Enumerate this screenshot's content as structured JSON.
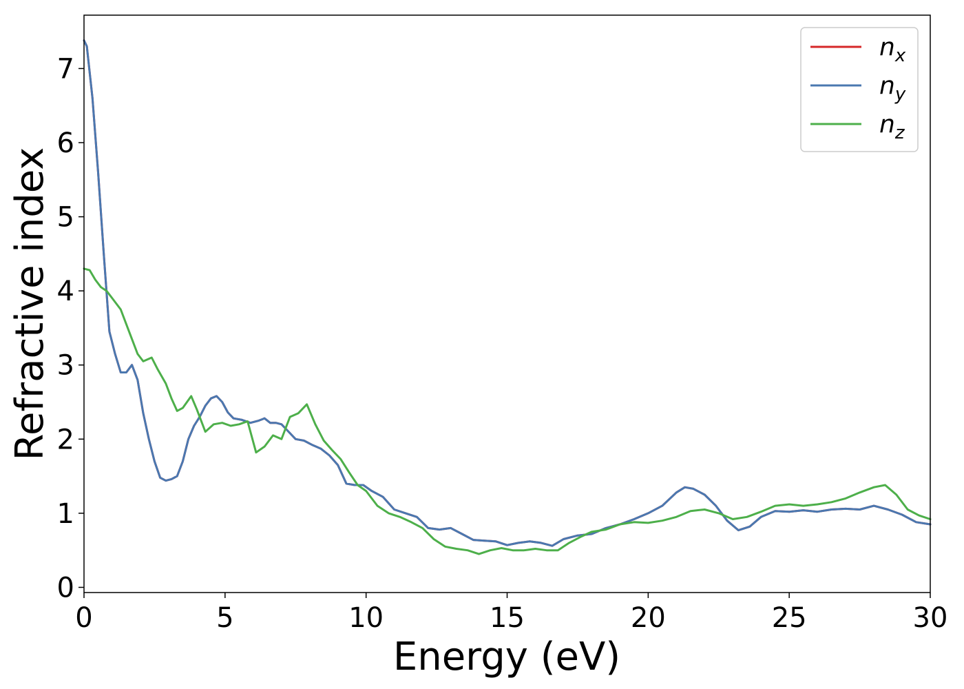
{
  "chart_data": {
    "type": "line",
    "title": "",
    "xlabel": "Energy (eV)",
    "ylabel": "Refractive index",
    "xlim": [
      0,
      30
    ],
    "ylim": [
      -0.07,
      7.72
    ],
    "xticks": [
      0,
      5,
      10,
      15,
      20,
      25,
      30
    ],
    "yticks": [
      0,
      1,
      2,
      3,
      4,
      5,
      6,
      7
    ],
    "grid": false,
    "legend_position": "top-right",
    "series": [
      {
        "name": "n",
        "subscript": "x",
        "color": "#d62728",
        "x": [
          0,
          0.1,
          0.3,
          0.5,
          0.7,
          0.9,
          1.1,
          1.3,
          1.5,
          1.7,
          1.9,
          2.1,
          2.3,
          2.5,
          2.7,
          2.9,
          3.1,
          3.3,
          3.5,
          3.7,
          3.9,
          4.1,
          4.3,
          4.5,
          4.7,
          4.9,
          5.1,
          5.3,
          5.6,
          5.9,
          6.2,
          6.4,
          6.6,
          6.8,
          7.0,
          7.2,
          7.5,
          7.8,
          8.1,
          8.4,
          8.7,
          9.0,
          9.3,
          9.6,
          9.9,
          10.2,
          10.6,
          11.0,
          11.4,
          11.8,
          12.2,
          12.6,
          13.0,
          13.4,
          13.8,
          14.2,
          14.6,
          15.0,
          15.4,
          15.8,
          16.2,
          16.6,
          17.0,
          17.5,
          18.0,
          18.5,
          19.0,
          19.5,
          20.0,
          20.5,
          21.0,
          21.3,
          21.6,
          22.0,
          22.4,
          22.8,
          23.2,
          23.6,
          24.0,
          24.5,
          25.0,
          25.5,
          26.0,
          26.5,
          27.0,
          27.5,
          28.0,
          28.5,
          29.0,
          29.5,
          30.0
        ],
        "values": [
          7.38,
          7.3,
          6.6,
          5.6,
          4.5,
          3.45,
          3.15,
          2.9,
          2.9,
          3.0,
          2.8,
          2.35,
          2.0,
          1.7,
          1.48,
          1.44,
          1.46,
          1.5,
          1.7,
          2.0,
          2.18,
          2.3,
          2.45,
          2.55,
          2.58,
          2.5,
          2.36,
          2.28,
          2.26,
          2.22,
          2.25,
          2.28,
          2.22,
          2.22,
          2.2,
          2.12,
          2.0,
          1.98,
          1.92,
          1.87,
          1.78,
          1.65,
          1.4,
          1.38,
          1.38,
          1.3,
          1.22,
          1.05,
          1.0,
          0.95,
          0.8,
          0.78,
          0.8,
          0.72,
          0.64,
          0.63,
          0.62,
          0.57,
          0.6,
          0.62,
          0.6,
          0.56,
          0.65,
          0.7,
          0.72,
          0.8,
          0.85,
          0.92,
          1.0,
          1.1,
          1.28,
          1.35,
          1.33,
          1.25,
          1.1,
          0.9,
          0.77,
          0.82,
          0.95,
          1.03,
          1.02,
          1.04,
          1.02,
          1.05,
          1.06,
          1.05,
          1.1,
          1.05,
          0.98,
          0.88,
          0.85
        ]
      },
      {
        "name": "n",
        "subscript": "y",
        "color": "#4a78b0",
        "x": [
          0,
          0.1,
          0.3,
          0.5,
          0.7,
          0.9,
          1.1,
          1.3,
          1.5,
          1.7,
          1.9,
          2.1,
          2.3,
          2.5,
          2.7,
          2.9,
          3.1,
          3.3,
          3.5,
          3.7,
          3.9,
          4.1,
          4.3,
          4.5,
          4.7,
          4.9,
          5.1,
          5.3,
          5.6,
          5.9,
          6.2,
          6.4,
          6.6,
          6.8,
          7.0,
          7.2,
          7.5,
          7.8,
          8.1,
          8.4,
          8.7,
          9.0,
          9.3,
          9.6,
          9.9,
          10.2,
          10.6,
          11.0,
          11.4,
          11.8,
          12.2,
          12.6,
          13.0,
          13.4,
          13.8,
          14.2,
          14.6,
          15.0,
          15.4,
          15.8,
          16.2,
          16.6,
          17.0,
          17.5,
          18.0,
          18.5,
          19.0,
          19.5,
          20.0,
          20.5,
          21.0,
          21.3,
          21.6,
          22.0,
          22.4,
          22.8,
          23.2,
          23.6,
          24.0,
          24.5,
          25.0,
          25.5,
          26.0,
          26.5,
          27.0,
          27.5,
          28.0,
          28.5,
          29.0,
          29.5,
          30.0
        ],
        "values": [
          7.38,
          7.3,
          6.6,
          5.6,
          4.5,
          3.45,
          3.15,
          2.9,
          2.9,
          3.0,
          2.8,
          2.35,
          2.0,
          1.7,
          1.48,
          1.44,
          1.46,
          1.5,
          1.7,
          2.0,
          2.18,
          2.3,
          2.45,
          2.55,
          2.58,
          2.5,
          2.36,
          2.28,
          2.26,
          2.22,
          2.25,
          2.28,
          2.22,
          2.22,
          2.2,
          2.12,
          2.0,
          1.98,
          1.92,
          1.87,
          1.78,
          1.65,
          1.4,
          1.38,
          1.38,
          1.3,
          1.22,
          1.05,
          1.0,
          0.95,
          0.8,
          0.78,
          0.8,
          0.72,
          0.64,
          0.63,
          0.62,
          0.57,
          0.6,
          0.62,
          0.6,
          0.56,
          0.65,
          0.7,
          0.72,
          0.8,
          0.85,
          0.92,
          1.0,
          1.1,
          1.28,
          1.35,
          1.33,
          1.25,
          1.1,
          0.9,
          0.77,
          0.82,
          0.95,
          1.03,
          1.02,
          1.04,
          1.02,
          1.05,
          1.06,
          1.05,
          1.1,
          1.05,
          0.98,
          0.88,
          0.85
        ]
      },
      {
        "name": "n",
        "subscript": "z",
        "color": "#4daf4a",
        "x": [
          0,
          0.2,
          0.4,
          0.6,
          0.8,
          1.0,
          1.3,
          1.6,
          1.9,
          2.1,
          2.4,
          2.6,
          2.9,
          3.1,
          3.3,
          3.5,
          3.8,
          4.0,
          4.3,
          4.6,
          4.9,
          5.2,
          5.5,
          5.8,
          6.1,
          6.4,
          6.7,
          7.0,
          7.3,
          7.6,
          7.9,
          8.2,
          8.5,
          8.8,
          9.1,
          9.4,
          9.7,
          10.0,
          10.4,
          10.8,
          11.2,
          11.6,
          12.0,
          12.4,
          12.8,
          13.2,
          13.6,
          14.0,
          14.4,
          14.8,
          15.2,
          15.6,
          16.0,
          16.4,
          16.8,
          17.2,
          17.6,
          18.0,
          18.5,
          19.0,
          19.5,
          20.0,
          20.5,
          21.0,
          21.5,
          22.0,
          22.5,
          23.0,
          23.5,
          24.0,
          24.5,
          25.0,
          25.5,
          26.0,
          26.5,
          27.0,
          27.5,
          28.0,
          28.4,
          28.8,
          29.2,
          29.6,
          30.0
        ],
        "values": [
          4.3,
          4.28,
          4.15,
          4.05,
          4.0,
          3.9,
          3.75,
          3.45,
          3.15,
          3.05,
          3.1,
          2.95,
          2.75,
          2.55,
          2.38,
          2.42,
          2.58,
          2.4,
          2.1,
          2.2,
          2.22,
          2.18,
          2.2,
          2.24,
          1.82,
          1.9,
          2.05,
          2.0,
          2.3,
          2.35,
          2.47,
          2.2,
          1.98,
          1.85,
          1.73,
          1.55,
          1.38,
          1.3,
          1.1,
          1.0,
          0.95,
          0.88,
          0.8,
          0.65,
          0.55,
          0.52,
          0.5,
          0.45,
          0.5,
          0.53,
          0.5,
          0.5,
          0.52,
          0.5,
          0.5,
          0.6,
          0.68,
          0.75,
          0.78,
          0.85,
          0.88,
          0.87,
          0.9,
          0.95,
          1.03,
          1.05,
          1.0,
          0.92,
          0.95,
          1.02,
          1.1,
          1.12,
          1.1,
          1.12,
          1.15,
          1.2,
          1.28,
          1.35,
          1.38,
          1.25,
          1.05,
          0.97,
          0.92
        ]
      }
    ]
  }
}
